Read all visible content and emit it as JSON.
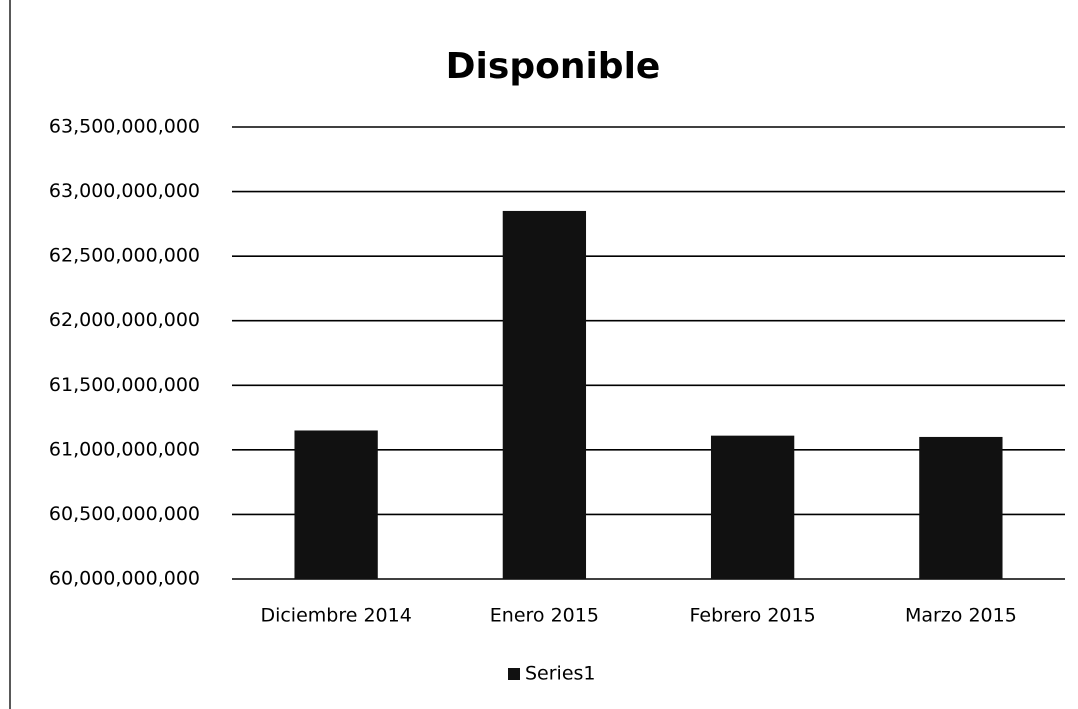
{
  "chart_data": {
    "type": "bar",
    "title": "Disponible",
    "categories": [
      "Diciembre 2014",
      "Enero 2015",
      "Febrero 2015",
      "Marzo 2015"
    ],
    "series": [
      {
        "name": "Series1",
        "color": "#111111",
        "values": [
          61150000000,
          62850000000,
          61110000000,
          61100000000
        ]
      }
    ],
    "ylim": [
      60000000000,
      63500000000
    ],
    "yticks": [
      {
        "value": 60000000000,
        "label": "60,000,000,000"
      },
      {
        "value": 60500000000,
        "label": "60,500,000,000"
      },
      {
        "value": 61000000000,
        "label": "61,000,000,000"
      },
      {
        "value": 61500000000,
        "label": "61,500,000,000"
      },
      {
        "value": 62000000000,
        "label": "62,000,000,000"
      },
      {
        "value": 62500000000,
        "label": "62,500,000,000"
      },
      {
        "value": 63000000000,
        "label": "63,000,000,000"
      },
      {
        "value": 63500000000,
        "label": "63,500,000,000"
      }
    ],
    "grid": true,
    "legend": "bottom"
  }
}
